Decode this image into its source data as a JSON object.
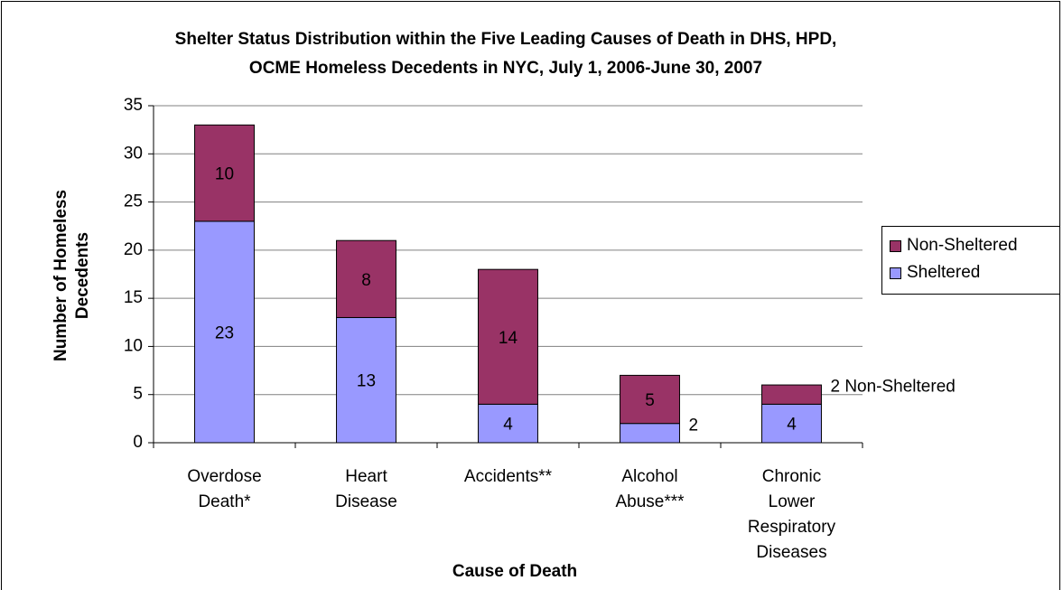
{
  "chart_data": {
    "type": "stacked_bar",
    "title": "Shelter Status Distribution within the Five Leading Causes of Death in DHS, HPD, OCME Homeless Decedents in NYC, July 1, 2006-June 30, 2007",
    "x_label": "Cause of Death",
    "y_label": "Number of Homeless Decedents",
    "categories": [
      "Overdose Death*",
      "Heart Disease",
      "Accidents**",
      "Alcohol Abuse***",
      "Chronic Lower Respiratory Diseases"
    ],
    "series": [
      {
        "name": "Sheltered",
        "color": "#9999ff",
        "values": [
          23,
          13,
          4,
          2,
          4
        ]
      },
      {
        "name": "Non-Sheltered",
        "color": "#993366",
        "values": [
          10,
          8,
          14,
          5,
          2
        ],
        "value_labels": [
          "10",
          "8",
          "14",
          "5",
          "2 Non-Sheltered"
        ]
      }
    ],
    "ylim": [
      0,
      35
    ],
    "yticks": [
      0,
      5,
      10,
      15,
      20,
      25,
      30,
      35
    ],
    "grid": true,
    "legend": "right"
  }
}
